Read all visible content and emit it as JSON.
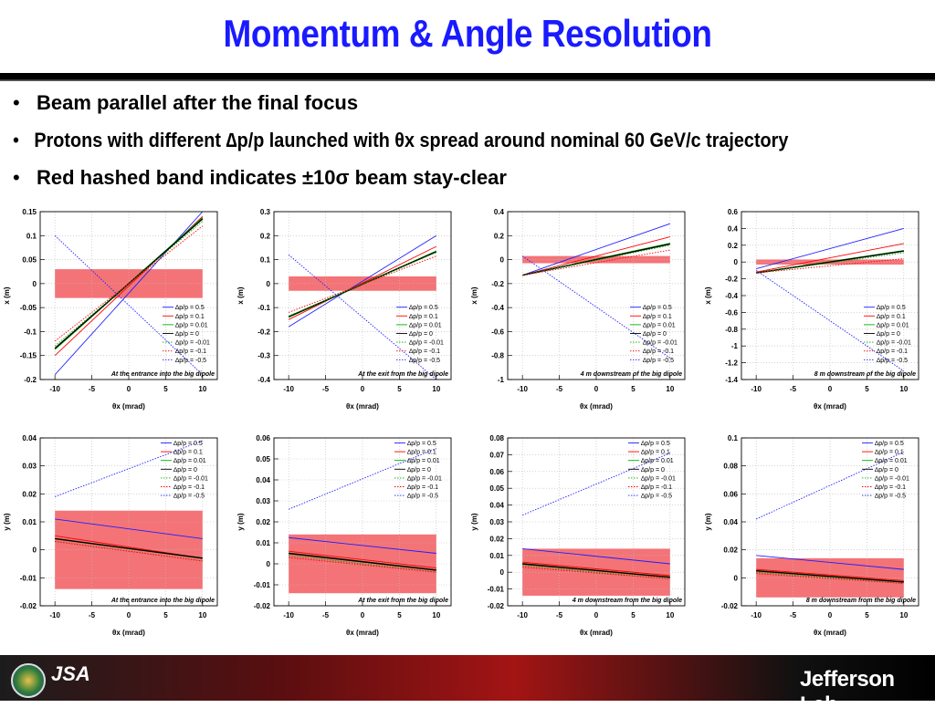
{
  "title": "Momentum & Angle Resolution",
  "bullets": [
    "Beam parallel after the final focus",
    "Protons with different ∆p/p launched with θx spread around nominal 60 GeV/c trajectory",
    "Red hashed band indicates ±10σ beam stay-clear"
  ],
  "colors": {
    "title": "#1a1aff",
    "band": "#f25a5f",
    "series": [
      "#1f1fff",
      "#ff0000",
      "#00b000",
      "#000000",
      "#00b000",
      "#ff0000",
      "#1f1fff"
    ]
  },
  "legend_entries": [
    "∆p/p = 0.5",
    "∆p/p = 0.1",
    "∆p/p = 0.01",
    "∆p/p = 0",
    "∆p/p = -0.01",
    "∆p/p = -0.1",
    "∆p/p = -0.5"
  ],
  "footer": {
    "logo_left": "DOE",
    "logo_mid": "JSA",
    "logo_right": "Jefferson Lab"
  },
  "chart_data": [
    {
      "type": "line",
      "title": "At the entrance into the big dipole",
      "xlabel": "θx (mrad)",
      "ylabel": "x (m)",
      "xlim": [
        -12,
        12
      ],
      "ylim": [
        -0.2,
        0.15
      ],
      "yticks": [
        -0.2,
        -0.15,
        -0.1,
        -0.05,
        0,
        0.05,
        0.1,
        0.15
      ],
      "xticks": [
        -10,
        -5,
        0,
        5,
        10
      ],
      "band": [
        -0.03,
        0.03
      ],
      "legend": "right",
      "series": [
        {
          "name": "∆p/p = 0.5",
          "style": "solid",
          "x": [
            -10,
            10
          ],
          "y": [
            -0.19,
            0.15
          ]
        },
        {
          "name": "∆p/p = 0.1",
          "style": "solid",
          "x": [
            -10,
            10
          ],
          "y": [
            -0.15,
            0.14
          ]
        },
        {
          "name": "∆p/p = 0.01",
          "style": "solid",
          "x": [
            -10,
            10
          ],
          "y": [
            -0.137,
            0.137
          ]
        },
        {
          "name": "∆p/p = 0",
          "style": "solid",
          "x": [
            -10,
            10
          ],
          "y": [
            -0.135,
            0.135
          ]
        },
        {
          "name": "∆p/p = -0.01",
          "style": "dotted",
          "x": [
            -10,
            10
          ],
          "y": [
            -0.13,
            0.13
          ]
        },
        {
          "name": "∆p/p = -0.1",
          "style": "dotted",
          "x": [
            -10,
            10
          ],
          "y": [
            -0.12,
            0.12
          ]
        },
        {
          "name": "∆p/p = -0.5",
          "style": "dotted",
          "x": [
            -10,
            10
          ],
          "y": [
            0.1,
            -0.19
          ]
        }
      ]
    },
    {
      "type": "line",
      "title": "At the exit from the big dipole",
      "xlabel": "θx (mrad)",
      "ylabel": "x (m)",
      "xlim": [
        -12,
        12
      ],
      "ylim": [
        -0.4,
        0.3
      ],
      "yticks": [
        -0.4,
        -0.3,
        -0.2,
        -0.1,
        0,
        0.1,
        0.2,
        0.3
      ],
      "xticks": [
        -10,
        -5,
        0,
        5,
        10
      ],
      "band": [
        -0.03,
        0.03
      ],
      "legend": "right",
      "series": [
        {
          "name": "∆p/p = 0.5",
          "style": "solid",
          "x": [
            -10,
            10
          ],
          "y": [
            -0.18,
            0.2
          ]
        },
        {
          "name": "∆p/p = 0.1",
          "style": "solid",
          "x": [
            -10,
            10
          ],
          "y": [
            -0.15,
            0.155
          ]
        },
        {
          "name": "∆p/p = 0.01",
          "style": "solid",
          "x": [
            -10,
            10
          ],
          "y": [
            -0.14,
            0.135
          ]
        },
        {
          "name": "∆p/p = 0",
          "style": "solid",
          "x": [
            -10,
            10
          ],
          "y": [
            -0.138,
            0.133
          ]
        },
        {
          "name": "∆p/p = -0.01",
          "style": "dotted",
          "x": [
            -10,
            10
          ],
          "y": [
            -0.135,
            0.13
          ]
        },
        {
          "name": "∆p/p = -0.1",
          "style": "dotted",
          "x": [
            -10,
            10
          ],
          "y": [
            -0.12,
            0.115
          ]
        },
        {
          "name": "∆p/p = -0.5",
          "style": "dotted",
          "x": [
            -10,
            10
          ],
          "y": [
            0.12,
            -0.4
          ]
        }
      ]
    },
    {
      "type": "line",
      "title": "4 m downstream of the big dipole",
      "xlabel": "θx (mrad)",
      "ylabel": "x (m)",
      "xlim": [
        -12,
        12
      ],
      "ylim": [
        -1,
        0.4
      ],
      "yticks": [
        -1,
        -0.8,
        -0.6,
        -0.4,
        -0.2,
        0,
        0.2,
        0.4
      ],
      "xticks": [
        -10,
        -5,
        0,
        5,
        10
      ],
      "band": [
        -0.03,
        0.03
      ],
      "legend": "right",
      "series": [
        {
          "name": "∆p/p = 0.5",
          "style": "solid",
          "x": [
            -10,
            10
          ],
          "y": [
            -0.13,
            0.3
          ]
        },
        {
          "name": "∆p/p = 0.1",
          "style": "solid",
          "x": [
            -10,
            10
          ],
          "y": [
            -0.13,
            0.19
          ]
        },
        {
          "name": "∆p/p = 0.01",
          "style": "solid",
          "x": [
            -10,
            10
          ],
          "y": [
            -0.13,
            0.135
          ]
        },
        {
          "name": "∆p/p = 0",
          "style": "solid",
          "x": [
            -10,
            10
          ],
          "y": [
            -0.13,
            0.13
          ]
        },
        {
          "name": "∆p/p = -0.01",
          "style": "dotted",
          "x": [
            -10,
            10
          ],
          "y": [
            -0.13,
            0.12
          ]
        },
        {
          "name": "∆p/p = -0.1",
          "style": "dotted",
          "x": [
            -10,
            10
          ],
          "y": [
            -0.13,
            0.08
          ]
        },
        {
          "name": "∆p/p = -0.5",
          "style": "dotted",
          "x": [
            -10,
            10
          ],
          "y": [
            0.03,
            -0.82
          ]
        }
      ]
    },
    {
      "type": "line",
      "title": "8 m downstream of the big dipole",
      "xlabel": "θx (mrad)",
      "ylabel": "x (m)",
      "xlim": [
        -12,
        12
      ],
      "ylim": [
        -1.4,
        0.6
      ],
      "yticks": [
        -1.4,
        -1.2,
        -1,
        -0.8,
        -0.6,
        -0.4,
        -0.2,
        0,
        0.2,
        0.4,
        0.6
      ],
      "xticks": [
        -10,
        -5,
        0,
        5,
        10
      ],
      "band": [
        -0.03,
        0.03
      ],
      "legend": "right",
      "series": [
        {
          "name": "∆p/p = 0.5",
          "style": "solid",
          "x": [
            -10,
            10
          ],
          "y": [
            -0.08,
            0.4
          ]
        },
        {
          "name": "∆p/p = 0.1",
          "style": "solid",
          "x": [
            -10,
            10
          ],
          "y": [
            -0.12,
            0.22
          ]
        },
        {
          "name": "∆p/p = 0.01",
          "style": "solid",
          "x": [
            -10,
            10
          ],
          "y": [
            -0.13,
            0.135
          ]
        },
        {
          "name": "∆p/p = 0",
          "style": "solid",
          "x": [
            -10,
            10
          ],
          "y": [
            -0.13,
            0.13
          ]
        },
        {
          "name": "∆p/p = -0.01",
          "style": "dotted",
          "x": [
            -10,
            10
          ],
          "y": [
            -0.13,
            0.11
          ]
        },
        {
          "name": "∆p/p = -0.1",
          "style": "dotted",
          "x": [
            -10,
            10
          ],
          "y": [
            -0.13,
            0.04
          ]
        },
        {
          "name": "∆p/p = -0.5",
          "style": "dotted",
          "x": [
            -10,
            10
          ],
          "y": [
            -0.1,
            -1.3
          ]
        }
      ]
    },
    {
      "type": "line",
      "title": "At the entrance into the big dipole",
      "xlabel": "θx (mrad)",
      "ylabel": "y (m)",
      "xlim": [
        -12,
        12
      ],
      "ylim": [
        -0.02,
        0.04
      ],
      "yticks": [
        -0.02,
        -0.01,
        0,
        0.01,
        0.02,
        0.03,
        0.04
      ],
      "xticks": [
        -10,
        -5,
        0,
        5,
        10
      ],
      "band": [
        -0.014,
        0.014
      ],
      "legend": "top",
      "series": [
        {
          "name": "∆p/p = 0.5",
          "style": "solid",
          "x": [
            -10,
            10
          ],
          "y": [
            0.011,
            0.004
          ]
        },
        {
          "name": "∆p/p = 0.1",
          "style": "solid",
          "x": [
            -10,
            10
          ],
          "y": [
            0.005,
            -0.003
          ]
        },
        {
          "name": "∆p/p = 0.01",
          "style": "solid",
          "x": [
            -10,
            10
          ],
          "y": [
            0.004,
            -0.003
          ]
        },
        {
          "name": "∆p/p = 0",
          "style": "solid",
          "x": [
            -10,
            10
          ],
          "y": [
            0.004,
            -0.003
          ]
        },
        {
          "name": "∆p/p = -0.01",
          "style": "dotted",
          "x": [
            -10,
            10
          ],
          "y": [
            0.003,
            -0.004
          ]
        },
        {
          "name": "∆p/p = -0.1",
          "style": "dotted",
          "x": [
            -10,
            10
          ],
          "y": [
            0.003,
            -0.004
          ]
        },
        {
          "name": "∆p/p = -0.5",
          "style": "dotted",
          "x": [
            -10,
            10
          ],
          "y": [
            0.019,
            0.039
          ]
        }
      ]
    },
    {
      "type": "line",
      "title": "At the exit from the big dipole",
      "xlabel": "θx (mrad)",
      "ylabel": "y (m)",
      "xlim": [
        -12,
        12
      ],
      "ylim": [
        -0.02,
        0.06
      ],
      "yticks": [
        -0.02,
        -0.01,
        0,
        0.01,
        0.02,
        0.03,
        0.04,
        0.05,
        0.06
      ],
      "xticks": [
        -10,
        -5,
        0,
        5,
        10
      ],
      "band": [
        -0.014,
        0.014
      ],
      "legend": "top",
      "series": [
        {
          "name": "∆p/p = 0.5",
          "style": "solid",
          "x": [
            -10,
            10
          ],
          "y": [
            0.0125,
            0.005
          ]
        },
        {
          "name": "∆p/p = 0.1",
          "style": "solid",
          "x": [
            -10,
            10
          ],
          "y": [
            0.006,
            -0.002
          ]
        },
        {
          "name": "∆p/p = 0.01",
          "style": "solid",
          "x": [
            -10,
            10
          ],
          "y": [
            0.005,
            -0.003
          ]
        },
        {
          "name": "∆p/p = 0",
          "style": "solid",
          "x": [
            -10,
            10
          ],
          "y": [
            0.005,
            -0.003
          ]
        },
        {
          "name": "∆p/p = -0.01",
          "style": "dotted",
          "x": [
            -10,
            10
          ],
          "y": [
            0.004,
            -0.004
          ]
        },
        {
          "name": "∆p/p = -0.1",
          "style": "dotted",
          "x": [
            -10,
            10
          ],
          "y": [
            0.003,
            -0.004
          ]
        },
        {
          "name": "∆p/p = -0.5",
          "style": "dotted",
          "x": [
            -10,
            10
          ],
          "y": [
            0.026,
            0.055
          ]
        }
      ]
    },
    {
      "type": "line",
      "title": "4 m downstream from the big dipole",
      "xlabel": "θx (mrad)",
      "ylabel": "y (m)",
      "xlim": [
        -12,
        12
      ],
      "ylim": [
        -0.02,
        0.08
      ],
      "yticks": [
        -0.02,
        -0.01,
        0,
        0.01,
        0.02,
        0.03,
        0.04,
        0.05,
        0.06,
        0.07,
        0.08
      ],
      "xticks": [
        -10,
        -5,
        0,
        5,
        10
      ],
      "band": [
        -0.014,
        0.014
      ],
      "legend": "top",
      "series": [
        {
          "name": "∆p/p = 0.5",
          "style": "solid",
          "x": [
            -10,
            10
          ],
          "y": [
            0.014,
            0.005
          ]
        },
        {
          "name": "∆p/p = 0.1",
          "style": "solid",
          "x": [
            -10,
            10
          ],
          "y": [
            0.006,
            -0.002
          ]
        },
        {
          "name": "∆p/p = 0.01",
          "style": "solid",
          "x": [
            -10,
            10
          ],
          "y": [
            0.005,
            -0.003
          ]
        },
        {
          "name": "∆p/p = 0",
          "style": "solid",
          "x": [
            -10,
            10
          ],
          "y": [
            0.005,
            -0.003
          ]
        },
        {
          "name": "∆p/p = -0.01",
          "style": "dotted",
          "x": [
            -10,
            10
          ],
          "y": [
            0.004,
            -0.004
          ]
        },
        {
          "name": "∆p/p = -0.1",
          "style": "dotted",
          "x": [
            -10,
            10
          ],
          "y": [
            0.003,
            -0.004
          ]
        },
        {
          "name": "∆p/p = -0.5",
          "style": "dotted",
          "x": [
            -10,
            10
          ],
          "y": [
            0.034,
            0.071
          ]
        }
      ]
    },
    {
      "type": "line",
      "title": "8 m downstream from the big dipole",
      "xlabel": "θx (mrad)",
      "ylabel": "y (m)",
      "xlim": [
        -12,
        12
      ],
      "ylim": [
        -0.02,
        0.1
      ],
      "yticks": [
        -0.02,
        0,
        0.02,
        0.04,
        0.06,
        0.08,
        0.1
      ],
      "xticks": [
        -10,
        -5,
        0,
        5,
        10
      ],
      "band": [
        -0.014,
        0.014
      ],
      "legend": "top",
      "series": [
        {
          "name": "∆p/p = 0.5",
          "style": "solid",
          "x": [
            -10,
            10
          ],
          "y": [
            0.016,
            0.006
          ]
        },
        {
          "name": "∆p/p = 0.1",
          "style": "solid",
          "x": [
            -10,
            10
          ],
          "y": [
            0.006,
            -0.002
          ]
        },
        {
          "name": "∆p/p = 0.01",
          "style": "solid",
          "x": [
            -10,
            10
          ],
          "y": [
            0.005,
            -0.003
          ]
        },
        {
          "name": "∆p/p = 0",
          "style": "solid",
          "x": [
            -10,
            10
          ],
          "y": [
            0.005,
            -0.003
          ]
        },
        {
          "name": "∆p/p = -0.01",
          "style": "dotted",
          "x": [
            -10,
            10
          ],
          "y": [
            0.004,
            -0.004
          ]
        },
        {
          "name": "∆p/p = -0.1",
          "style": "dotted",
          "x": [
            -10,
            10
          ],
          "y": [
            0.003,
            -0.004
          ]
        },
        {
          "name": "∆p/p = -0.5",
          "style": "dotted",
          "x": [
            -10,
            10
          ],
          "y": [
            0.042,
            0.09
          ]
        }
      ]
    }
  ]
}
